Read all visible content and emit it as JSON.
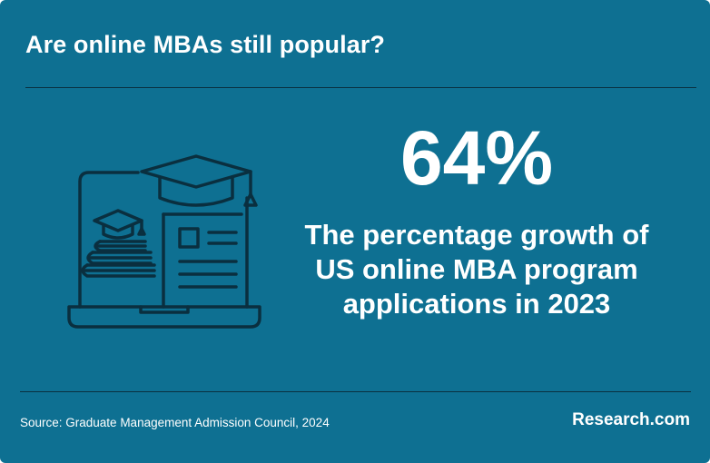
{
  "title": "Are online MBAs still popular?",
  "stat": {
    "value": "64%",
    "description": "The percentage growth of US online MBA program applications in 2023"
  },
  "footer": {
    "source": "Source: Graduate Management Admission Council, 2024",
    "brand": "Research.com"
  },
  "colors": {
    "background": "#0e7092",
    "line_art": "#0a2f3f",
    "text": "#ffffff"
  },
  "icons": [
    "laptop-with-graduation-cap-icon"
  ]
}
